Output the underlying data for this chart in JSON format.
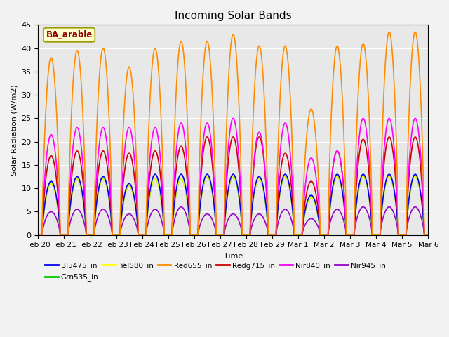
{
  "title": "Incoming Solar Bands",
  "xlabel": "Time",
  "ylabel": "Solar Radiation (W/m2)",
  "annotation_text": "BA_arable",
  "ylim": [
    0,
    45
  ],
  "background_color": "#f2f2f2",
  "plot_bg_color": "#e8e8e8",
  "series_order": [
    "Nir945_in",
    "Grn535_in",
    "Yel580_in",
    "Blu475_in",
    "Redg715_in",
    "Nir840_in",
    "Red655_in"
  ],
  "series": {
    "Blu475_in": {
      "color": "#0000ee",
      "lw": 1.2
    },
    "Grn535_in": {
      "color": "#00cc00",
      "lw": 1.2
    },
    "Yel580_in": {
      "color": "#ffff00",
      "lw": 1.2
    },
    "Red655_in": {
      "color": "#ff8c00",
      "lw": 1.2
    },
    "Redg715_in": {
      "color": "#cc0000",
      "lw": 1.2
    },
    "Nir840_in": {
      "color": "#ff00ff",
      "lw": 1.2
    },
    "Nir945_in": {
      "color": "#9900cc",
      "lw": 1.2
    }
  },
  "n_days": 15,
  "day_labels": [
    "Feb 20",
    "Feb 21",
    "Feb 22",
    "Feb 23",
    "Feb 24",
    "Feb 25",
    "Feb 26",
    "Feb 27",
    "Feb 28",
    "Feb 29",
    "Mar 1",
    "Mar 2",
    "Mar 3",
    "Mar 4",
    "Mar 5",
    "Mar 6"
  ],
  "peaks": {
    "Red655_in": [
      38,
      39.5,
      40.0,
      36,
      40.0,
      41.5,
      41.5,
      43.0,
      40.5,
      40.5,
      27,
      40.5,
      41.0,
      43.5,
      43.5
    ],
    "Nir840_in": [
      21.5,
      23,
      23,
      23,
      23,
      24,
      24,
      25,
      22,
      24,
      16.5,
      18,
      25,
      25,
      25
    ],
    "Redg715_in": [
      17,
      18,
      18,
      17.5,
      18,
      19,
      21,
      21,
      21,
      17.5,
      11.5,
      18,
      20.5,
      21,
      21
    ],
    "Blu475_in": [
      11.5,
      12.5,
      12.5,
      11,
      13,
      13,
      13,
      13,
      12.5,
      13,
      8.5,
      13,
      13,
      13,
      13
    ],
    "Grn535_in": [
      11,
      12,
      12,
      10.5,
      12,
      12,
      12.5,
      12.5,
      12,
      12.5,
      8,
      12.5,
      12.5,
      12.5,
      12.5
    ],
    "Yel580_in": [
      11,
      12,
      12,
      10.5,
      12,
      12,
      12.5,
      12.5,
      12,
      12.5,
      8,
      12.5,
      12.5,
      12.5,
      12.5
    ],
    "Nir945_in": [
      5,
      5.5,
      5.5,
      4.5,
      5.5,
      6,
      4.5,
      4.5,
      4.5,
      5.5,
      3.5,
      5.5,
      6,
      6,
      6
    ]
  },
  "legend_order": [
    "Blu475_in",
    "Grn535_in",
    "Yel580_in",
    "Red655_in",
    "Redg715_in",
    "Nir840_in",
    "Nir945_in"
  ]
}
